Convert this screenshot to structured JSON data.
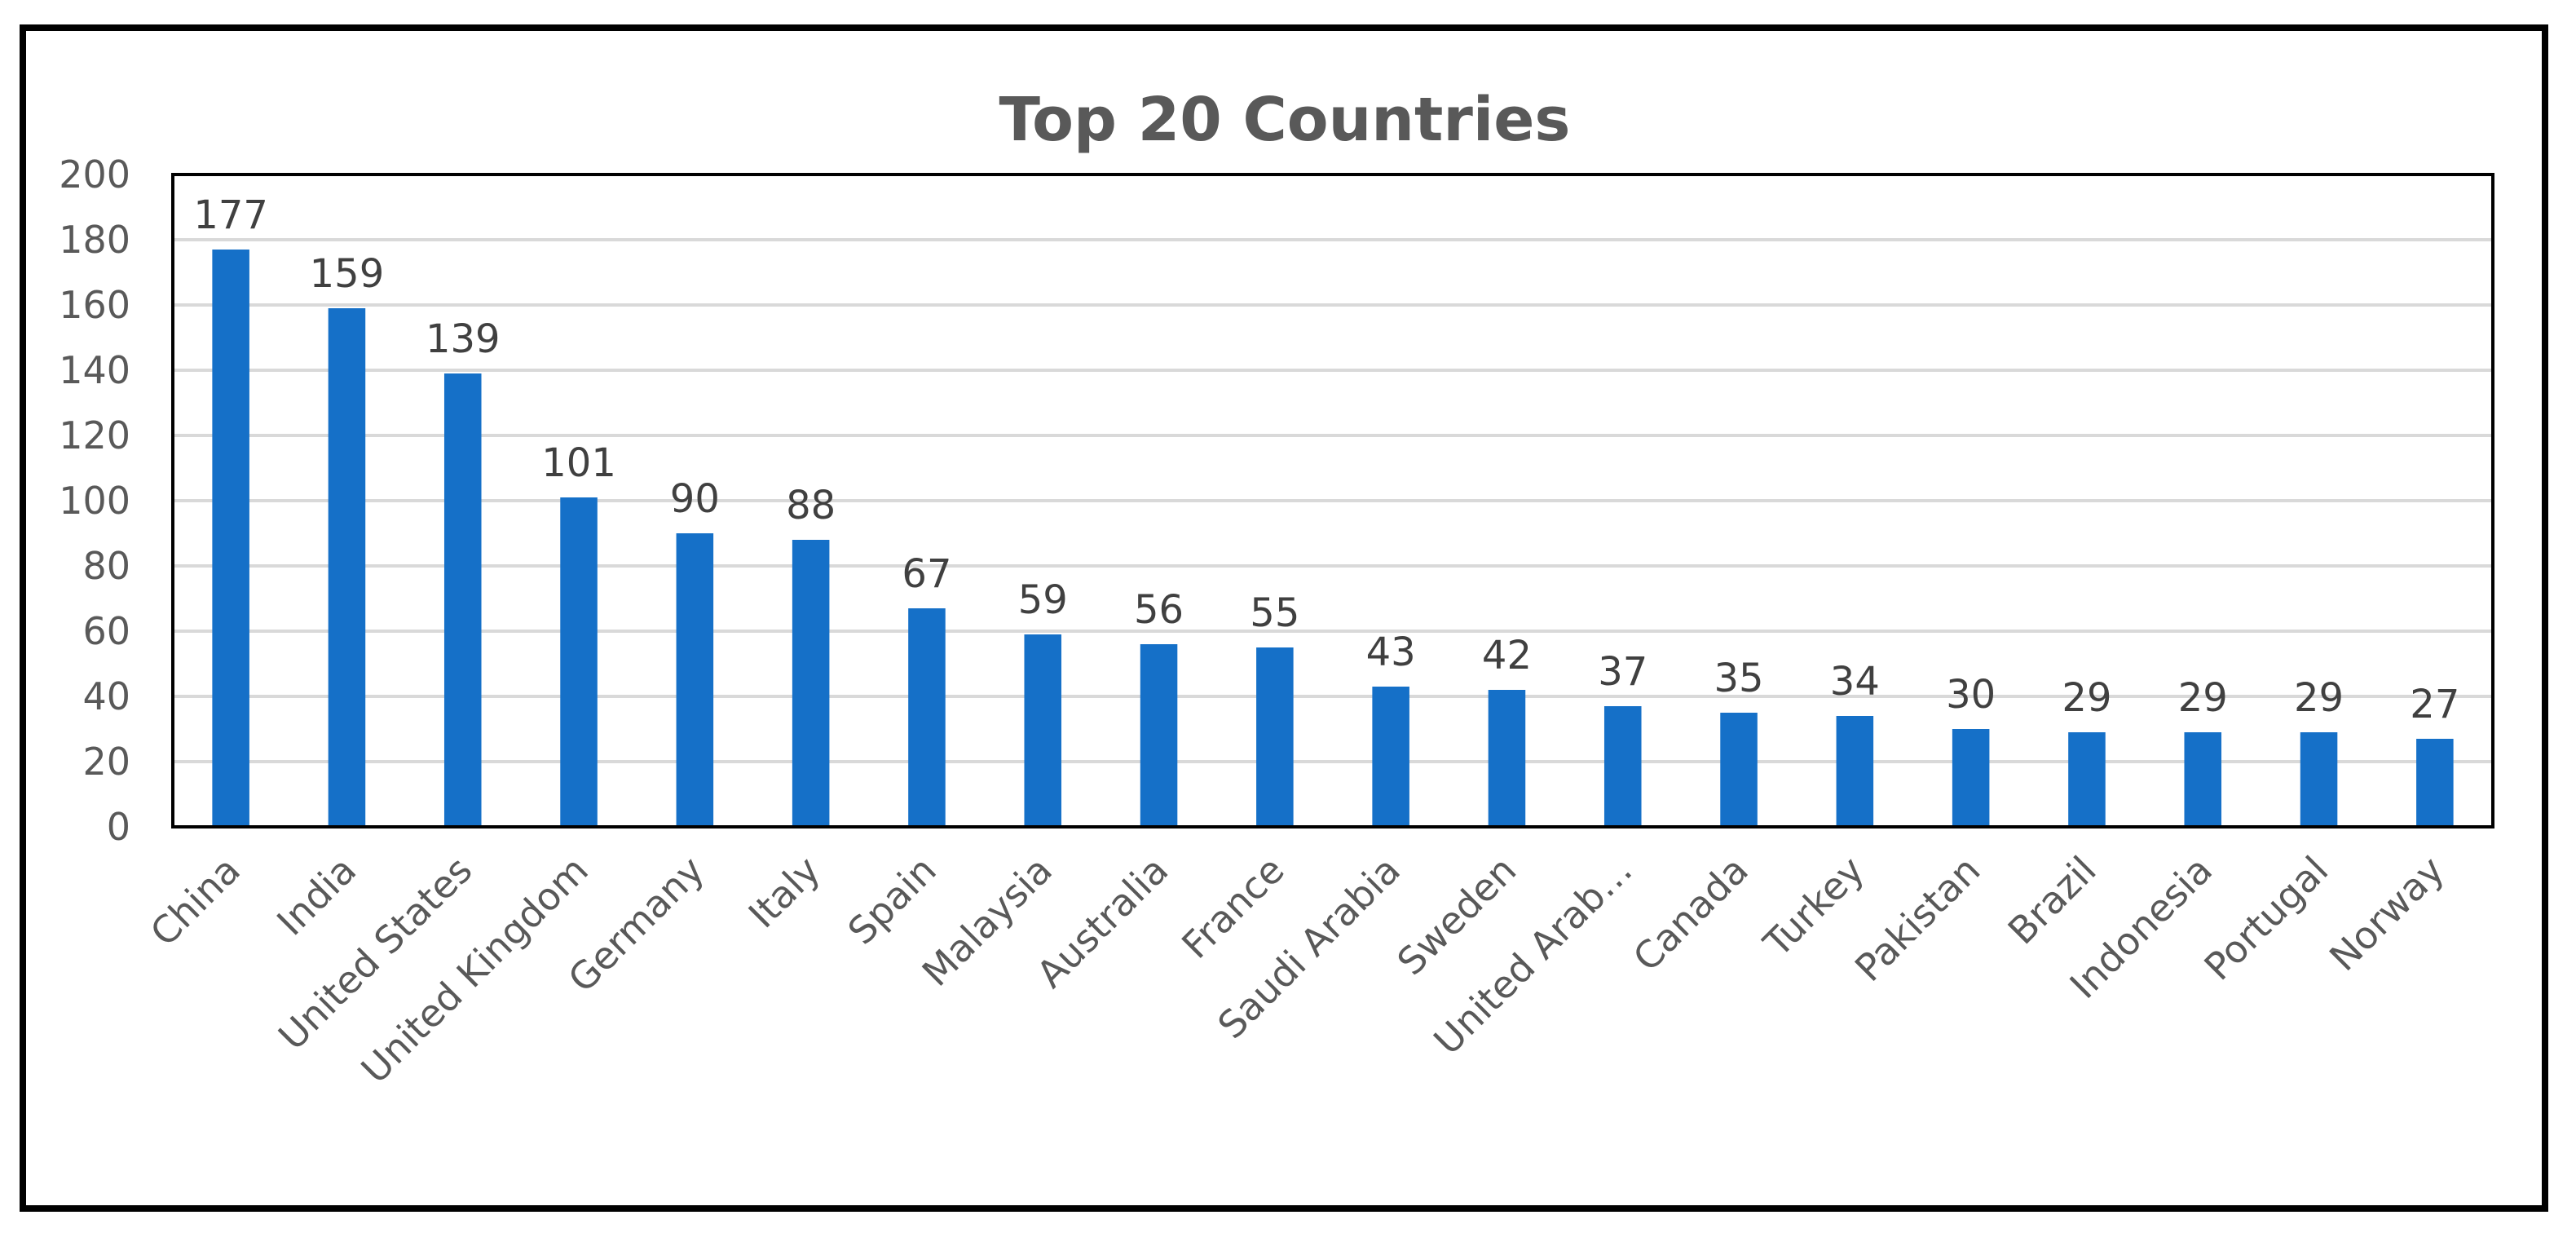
{
  "chart_data": {
    "type": "bar",
    "title": "Top 20 Countries",
    "xlabel": "",
    "ylabel": "",
    "categories": [
      "China",
      "India",
      "United States",
      "United Kingdom",
      "Germany",
      "Italy",
      "Spain",
      "Malaysia",
      "Australia",
      "France",
      "Saudi Arabia",
      "Sweden",
      "United Arab…",
      "Canada",
      "Turkey",
      "Pakistan",
      "Brazil",
      "Indonesia",
      "Portugal",
      "Norway"
    ],
    "values": [
      177,
      159,
      139,
      101,
      90,
      88,
      67,
      59,
      56,
      55,
      43,
      42,
      37,
      35,
      34,
      30,
      29,
      29,
      29,
      27
    ],
    "ylim": [
      0,
      200
    ],
    "yticks": [
      0,
      20,
      40,
      60,
      80,
      100,
      120,
      140,
      160,
      180,
      200
    ],
    "grid": true,
    "legend": "none",
    "data_labels": true,
    "colors": {
      "bar": "#1570C8",
      "grid": "#D9D9D9",
      "axis_text": "#595959",
      "label_text": "#404040",
      "plot_border": "#000000"
    }
  }
}
